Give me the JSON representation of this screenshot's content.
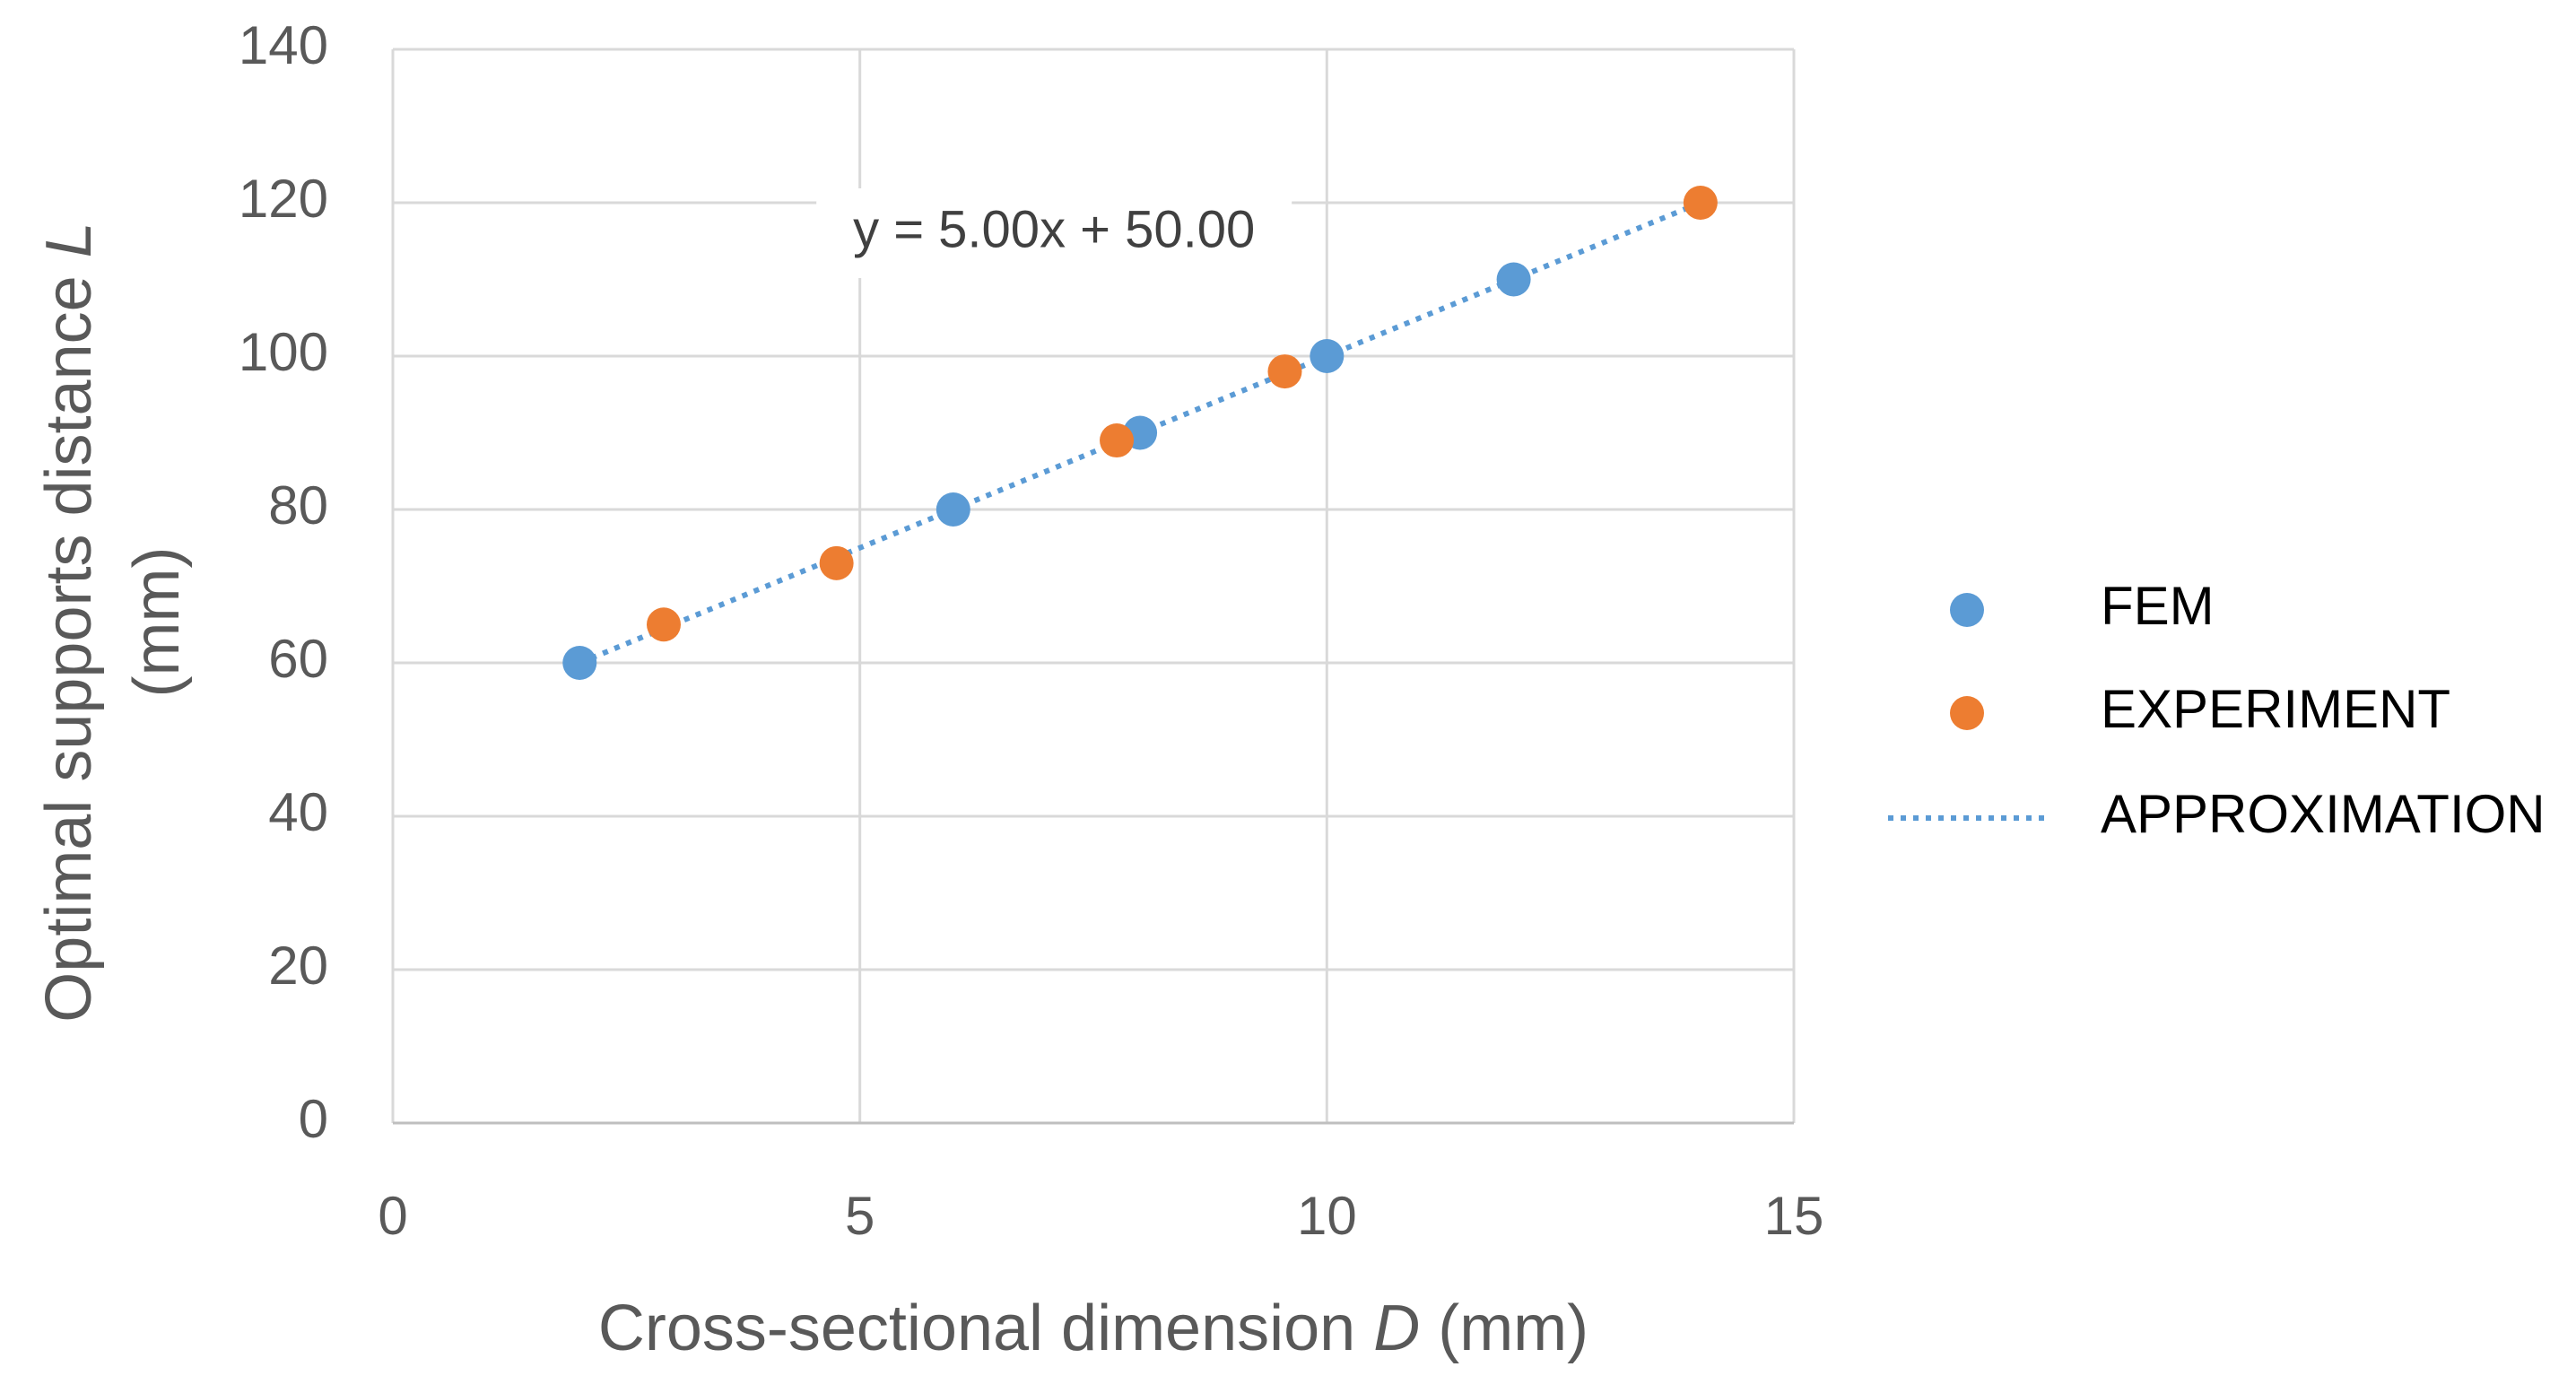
{
  "chart_data": {
    "type": "scatter",
    "title": "",
    "xlabel_prefix": "Cross-sectional dimension ",
    "xlabel_var": "D",
    "xlabel_suffix": " (mm)",
    "ylabel_line1_prefix": "Optimal supports distance ",
    "ylabel_line1_var": "L",
    "ylabel_line2": "(mm)",
    "xlim": [
      0,
      15
    ],
    "ylim": [
      0,
      140
    ],
    "xticks": [
      0,
      5,
      10,
      15
    ],
    "yticks": [
      0,
      20,
      40,
      60,
      80,
      100,
      120,
      140
    ],
    "grid": true,
    "legend_position": "right",
    "series": [
      {
        "name": "FEM",
        "kind": "marker",
        "color": "#5B9BD5",
        "x": [
          2,
          6,
          8,
          10,
          12
        ],
        "y": [
          60,
          80,
          90,
          100,
          110
        ]
      },
      {
        "name": "EXPERIMENT",
        "kind": "marker",
        "color": "#ED7D31",
        "x": [
          2.9,
          4.75,
          7.75,
          9.55,
          14
        ],
        "y": [
          65,
          73,
          89,
          98,
          120
        ]
      },
      {
        "name": "APPROXIMATION",
        "kind": "dotted-line",
        "color": "#5B9BD5",
        "slope": 5.0,
        "intercept": 50.0,
        "x_range": [
          2,
          14
        ]
      }
    ],
    "annotation": {
      "text": "y = 5.00x + 50.00",
      "x": 9,
      "y": 120
    }
  }
}
